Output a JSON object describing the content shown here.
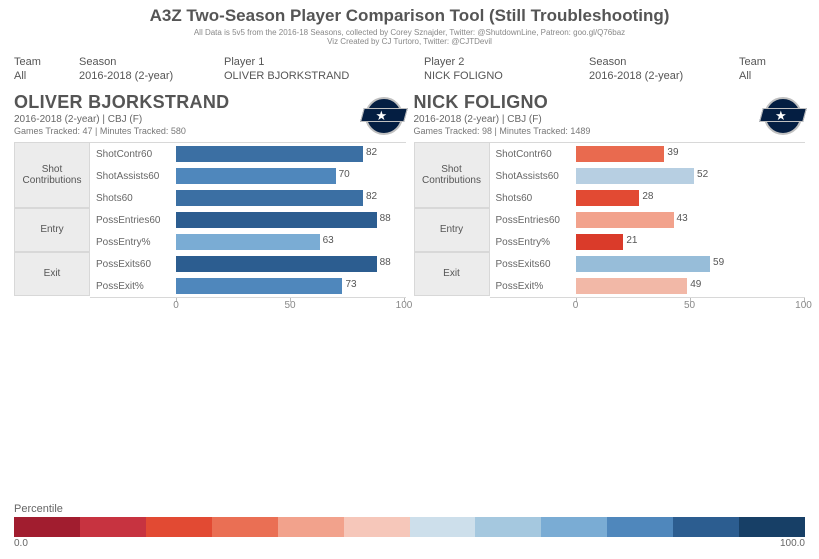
{
  "header": {
    "title": "A3Z Two-Season Player Comparison Tool (Still Troubleshooting)",
    "subtitle1": "All Data is 5v5 from the 2016-18 Seasons, collected by Corey Sznajder, Twitter: @ShutdownLine, Patreon: goo.gl/Q76baz",
    "subtitle2": "Viz Created by CJ Turtoro, Twitter: @CJTDevil"
  },
  "filters": {
    "team1_label": "Team",
    "team1_value": "All",
    "season1_label": "Season",
    "season1_value": "2016-2018 (2-year)",
    "player1_label": "Player 1",
    "player1_value": "OLIVER BJORKSTRAND",
    "player2_label": "Player 2",
    "player2_value": "NICK FOLIGNO",
    "season2_label": "Season",
    "season2_value": "2016-2018 (2-year)",
    "team2_label": "Team",
    "team2_value": "All"
  },
  "groups": [
    {
      "label": "Shot\nContributions",
      "rows": 3
    },
    {
      "label": "Entry",
      "rows": 2
    },
    {
      "label": "Exit",
      "rows": 2
    }
  ],
  "metrics": [
    "ShotContr60",
    "ShotAssists60",
    "Shots60",
    "PossEntries60",
    "PossEntry%",
    "PossExits60",
    "PossExit%"
  ],
  "axis": {
    "min": 0,
    "max": 100,
    "ticks": [
      0,
      50,
      100
    ]
  },
  "players": [
    {
      "name": "OLIVER BJORKSTRAND",
      "meta": "2016-2018 (2-year) | CBJ (F)",
      "tracked": "Games Tracked: 47 | Minutes Tracked: 580",
      "bars": [
        {
          "value": 82,
          "color": "#3b6fa3"
        },
        {
          "value": 70,
          "color": "#4f87bc"
        },
        {
          "value": 82,
          "color": "#3b6fa3"
        },
        {
          "value": 88,
          "color": "#2c5d90"
        },
        {
          "value": 63,
          "color": "#7aacd4"
        },
        {
          "value": 88,
          "color": "#2c5d90"
        },
        {
          "value": 73,
          "color": "#4f87bc"
        }
      ]
    },
    {
      "name": "NICK FOLIGNO",
      "meta": "2016-2018 (2-year) | CBJ (F)",
      "tracked": "Games Tracked: 98 | Minutes Tracked: 1489",
      "bars": [
        {
          "value": 39,
          "color": "#e96a4f"
        },
        {
          "value": 52,
          "color": "#b7cfe2"
        },
        {
          "value": 28,
          "color": "#e24a33"
        },
        {
          "value": 43,
          "color": "#f2a28c"
        },
        {
          "value": 21,
          "color": "#da3b2a"
        },
        {
          "value": 59,
          "color": "#97bdd9"
        },
        {
          "value": 49,
          "color": "#f2b8a7"
        }
      ]
    }
  ],
  "percentile": {
    "label": "Percentile",
    "low": "0.0",
    "high": "100.0",
    "colors": [
      "#a11d2f",
      "#c73340",
      "#e24a33",
      "#ea6f54",
      "#f2a28c",
      "#f6c7ba",
      "#cddfeb",
      "#a5c8df",
      "#7aacd4",
      "#4f87bc",
      "#2c5d90",
      "#173f66"
    ]
  }
}
